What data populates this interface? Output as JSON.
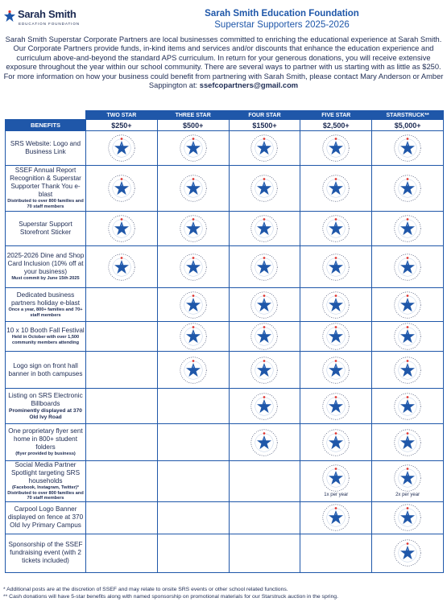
{
  "logo": {
    "name": "Sarah Smith",
    "sub": "EDUCATION FOUNDATION"
  },
  "header": {
    "title": "Sarah Smith Education Foundation",
    "subtitle": "Superstar Supporters 2025-2026"
  },
  "intro": {
    "text": "Sarah Smith Superstar Corporate Partners are local businesses committed to enriching the educational experience at Sarah Smith. Our Corporate Partners provide funds, in-kind items and services and/or discounts that enhance the education experience and curriculum above-and-beyond the standard APS curriculum. In return for your generous donations, you will receive extensive exposure throughout the year within our school community. There are several ways to partner with us starting with as little as $250. For more information on how your business could benefit from partnering with Sarah Smith, please contact Mary Anderson or Amber Sappington at: ",
    "email": "ssefcopartners@gmail.com"
  },
  "table": {
    "benefits_label": "BENEFITS",
    "tiers": [
      {
        "name": "TWO STAR",
        "price": "$250+"
      },
      {
        "name": "THREE STAR",
        "price": "$500+"
      },
      {
        "name": "FOUR STAR",
        "price": "$1500+"
      },
      {
        "name": "FIVE STAR",
        "price": "$2,500+"
      },
      {
        "name": "STARSTRUCK**",
        "price": "$5,000+"
      }
    ],
    "rows": [
      {
        "label": "SRS Website: Logo and Business Link",
        "small": "",
        "marks": [
          true,
          true,
          true,
          true,
          true
        ],
        "notes": [
          "",
          "",
          "",
          "",
          ""
        ]
      },
      {
        "label": "SSEF Annual Report Recognition & Superstar Supporter Thank You e-blast",
        "small": "Distributed to over 800 families and 70 staff members",
        "marks": [
          true,
          true,
          true,
          true,
          true
        ],
        "notes": [
          "",
          "",
          "",
          "",
          ""
        ]
      },
      {
        "label": "Superstar Support Storefront Sticker",
        "small": "",
        "marks": [
          true,
          true,
          true,
          true,
          true
        ],
        "notes": [
          "",
          "",
          "",
          "",
          ""
        ]
      },
      {
        "label": "2025-2026 Dine and Shop Card Inclusion (10% off at your business)",
        "small": "Must commit by June 15th 2025",
        "marks": [
          true,
          true,
          true,
          true,
          true
        ],
        "notes": [
          "",
          "",
          "",
          "",
          ""
        ]
      },
      {
        "label": "Dedicated business partners holiday e-blast",
        "small": "Once a year, 800+ families and 70+ staff members",
        "marks": [
          false,
          true,
          true,
          true,
          true
        ],
        "notes": [
          "",
          "",
          "",
          "",
          ""
        ]
      },
      {
        "label": "10 x 10 Booth Fall Festival",
        "small": "Held in October with over 1,500 community members attending",
        "marks": [
          false,
          true,
          true,
          true,
          true
        ],
        "notes": [
          "",
          "",
          "",
          "",
          ""
        ]
      },
      {
        "label": "Logo sign on front hall banner in both campuses",
        "small": "",
        "marks": [
          false,
          true,
          true,
          true,
          true
        ],
        "notes": [
          "",
          "",
          "",
          "",
          ""
        ]
      },
      {
        "label": "Listing on SRS Electronic Billboards",
        "small2": "Prominently displayed at 370 Old Ivy Road",
        "marks": [
          false,
          false,
          true,
          true,
          true
        ],
        "notes": [
          "",
          "",
          "",
          "",
          ""
        ]
      },
      {
        "label": "One proprietary flyer sent home in 800+ student folders",
        "small": "(flyer provided by business)",
        "marks": [
          false,
          false,
          true,
          true,
          true
        ],
        "notes": [
          "",
          "",
          "",
          "",
          ""
        ]
      },
      {
        "label": "Social Media Partner Spotlight targeting SRS households",
        "small": "(Facebook, Instagram, Twitter)* Distributed to over 800 families and 70 staff members",
        "marks": [
          false,
          false,
          false,
          true,
          true
        ],
        "notes": [
          "",
          "",
          "",
          "1x per year",
          "2x per year"
        ]
      },
      {
        "label": "Carpool Logo Banner displayed on fence at 370 Old Ivy Primary Campus",
        "small": "",
        "marks": [
          false,
          false,
          false,
          true,
          true
        ],
        "notes": [
          "",
          "",
          "",
          "",
          ""
        ]
      },
      {
        "label": "Sponsorship of the SSEF fundraising event (with 2 tickets included)",
        "small": "",
        "marks": [
          false,
          false,
          false,
          false,
          true
        ],
        "notes": [
          "",
          "",
          "",
          "",
          ""
        ]
      }
    ]
  },
  "footnotes": [
    "* Additional posts are at the discretion of SSEF and may relate to onsite SRS events or other school related functions.",
    "** Cash donations will have 5-star benefits along with named sponsorship on promotional materials for our Starstruck auction in the spring."
  ],
  "colors": {
    "brand_blue": "#1f57a9",
    "navy": "#1c2a52",
    "star_red": "#e0342f"
  },
  "icons": {
    "seal": "education-foundation-seal-icon",
    "logo": "star-logo-icon"
  }
}
